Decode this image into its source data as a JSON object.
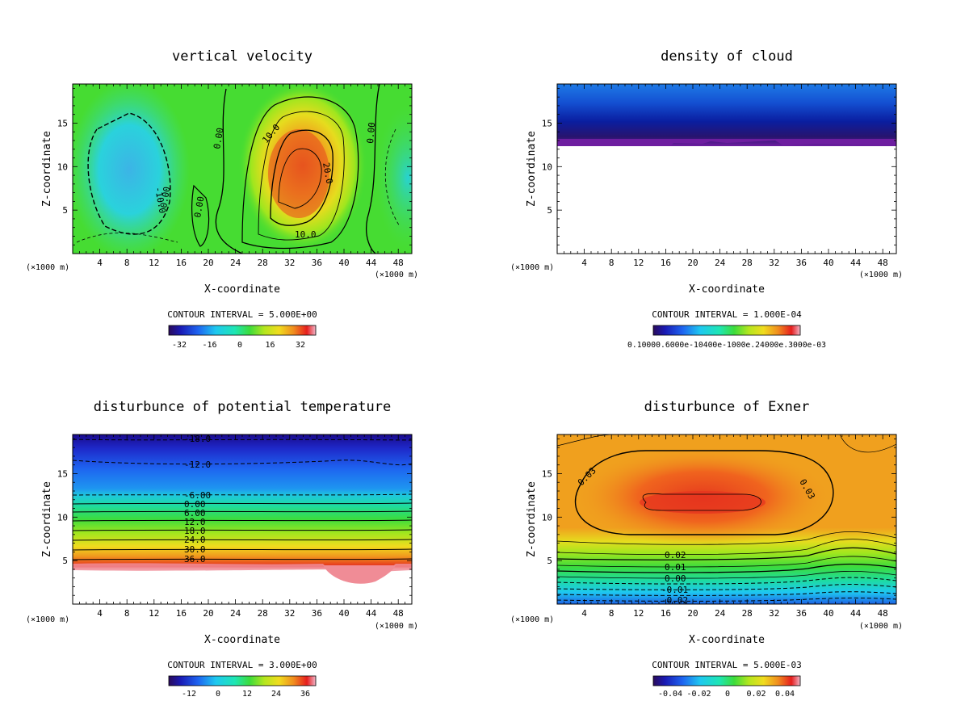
{
  "figure": {
    "panels": [
      {
        "id": "w",
        "title": "vertical velocity",
        "xlabel": "X-coordinate",
        "ylabel": "Z-coordinate",
        "x_unit_left": "(×1000 m)",
        "x_unit_right": "(×1000 m)",
        "contour_interval": "CONTOUR INTERVAL = 5.000E+00",
        "colorbar_ticks": [
          "-32",
          "-16",
          "0",
          "16",
          "32"
        ],
        "contour_labels": [
          "0.00",
          "0.00",
          "0.00",
          "0.00",
          "10.0",
          "10.0",
          "20.0",
          "-10.0"
        ]
      },
      {
        "id": "cloud",
        "title": "density of cloud",
        "xlabel": "X-coordinate",
        "ylabel": "Z-coordinate",
        "x_unit_left": "(×1000 m)",
        "x_unit_right": "(×1000 m)",
        "contour_interval": "CONTOUR INTERVAL = 1.000E-04",
        "colorbar_ticks_text": "0.10000.6000e-10400e-1000e.24000e.3000e-03",
        "contour_labels": []
      },
      {
        "id": "theta",
        "title": "disturbunce of potential temperature",
        "xlabel": "X-coordinate",
        "ylabel": "Z-coordinate",
        "x_unit_left": "(×1000 m)",
        "x_unit_right": "(×1000 m)",
        "contour_interval": "CONTOUR INTERVAL = 3.000E+00",
        "colorbar_ticks": [
          "-12",
          "0",
          "12",
          "24",
          "36"
        ],
        "contour_labels": [
          "-18.0",
          "-12.0",
          "-6.00",
          "0.00",
          "6.00",
          "12.0",
          "18.0",
          "24.0",
          "30.0",
          "36.0"
        ]
      },
      {
        "id": "exner",
        "title": "disturbunce of Exner",
        "xlabel": "X-coordinate",
        "ylabel": "Z-coordinate",
        "x_unit_left": "(×1000 m)",
        "x_unit_right": "(×1000 m)",
        "contour_interval": "CONTOUR INTERVAL = 5.000E-03",
        "colorbar_ticks": [
          "-0.04",
          "-0.02",
          "0",
          "0.02",
          "0.04"
        ],
        "contour_labels": [
          "0.03",
          "0.03",
          "0.02",
          "0.01",
          "0.00",
          "-0.01",
          "-0.02"
        ]
      }
    ]
  },
  "chart_data": [
    {
      "type": "heatmap",
      "title": "vertical velocity",
      "xlabel": "X-coordinate",
      "ylabel": "Z-coordinate",
      "x_ticks": [
        4,
        8,
        12,
        16,
        20,
        24,
        28,
        32,
        36,
        40,
        44,
        48
      ],
      "y_ticks": [
        5,
        10,
        15
      ],
      "xlim": [
        0,
        50
      ],
      "ylim": [
        0,
        19.5
      ],
      "color_range": [
        -40,
        40
      ],
      "features": {
        "updraft_max_approx": 25,
        "updraft_center_x": 33,
        "updraft_center_z": 9,
        "downdraft_min_approx": -12,
        "downdraft_center_x": 10,
        "downdraft_center_z": 10
      }
    },
    {
      "type": "heatmap",
      "title": "density of cloud",
      "xlabel": "X-coordinate",
      "ylabel": "Z-coordinate",
      "x_ticks": [
        4,
        8,
        12,
        16,
        20,
        24,
        28,
        32,
        36,
        40,
        44,
        48
      ],
      "y_ticks": [
        5,
        10,
        15
      ],
      "xlim": [
        0,
        50
      ],
      "ylim": [
        0,
        19.5
      ],
      "features": {
        "cloud_base_z": 12.8,
        "cloud_top_z": 19.5
      }
    },
    {
      "type": "heatmap",
      "title": "disturbunce of potential temperature",
      "xlabel": "X-coordinate",
      "ylabel": "Z-coordinate",
      "x_ticks": [
        4,
        8,
        12,
        16,
        20,
        24,
        28,
        32,
        36,
        40,
        44,
        48
      ],
      "y_ticks": [
        5,
        10,
        15
      ],
      "xlim": [
        0,
        50
      ],
      "ylim": [
        0,
        19.5
      ],
      "color_range": [
        -18,
        42
      ],
      "contour_levels": [
        {
          "value": -18,
          "z": 19.0
        },
        {
          "value": -12,
          "z": 16.0
        },
        {
          "value": -6,
          "z": 12.6
        },
        {
          "value": 0,
          "z": 11.5
        },
        {
          "value": 6,
          "z": 10.6
        },
        {
          "value": 12,
          "z": 9.7
        },
        {
          "value": 18,
          "z": 8.5
        },
        {
          "value": 24,
          "z": 7.3
        },
        {
          "value": 30,
          "z": 6.2
        },
        {
          "value": 36,
          "z": 5.0
        }
      ]
    },
    {
      "type": "heatmap",
      "title": "disturbunce of Exner",
      "xlabel": "X-coordinate",
      "ylabel": "Z-coordinate",
      "x_ticks": [
        4,
        8,
        12,
        16,
        20,
        24,
        28,
        32,
        36,
        40,
        44,
        48
      ],
      "y_ticks": [
        5,
        10,
        15
      ],
      "xlim": [
        0,
        50
      ],
      "ylim": [
        0,
        19.5
      ],
      "color_range": [
        -0.05,
        0.05
      ],
      "contour_levels": [
        {
          "value": 0.02,
          "z": 5.5
        },
        {
          "value": 0.01,
          "z": 4.0
        },
        {
          "value": 0.0,
          "z": 2.8
        },
        {
          "value": -0.01,
          "z": 1.8
        },
        {
          "value": -0.02,
          "z": 0.4
        }
      ],
      "features": {
        "max_region_center_x": 21,
        "max_region_center_z": 12,
        "max_approx": 0.04
      }
    }
  ]
}
